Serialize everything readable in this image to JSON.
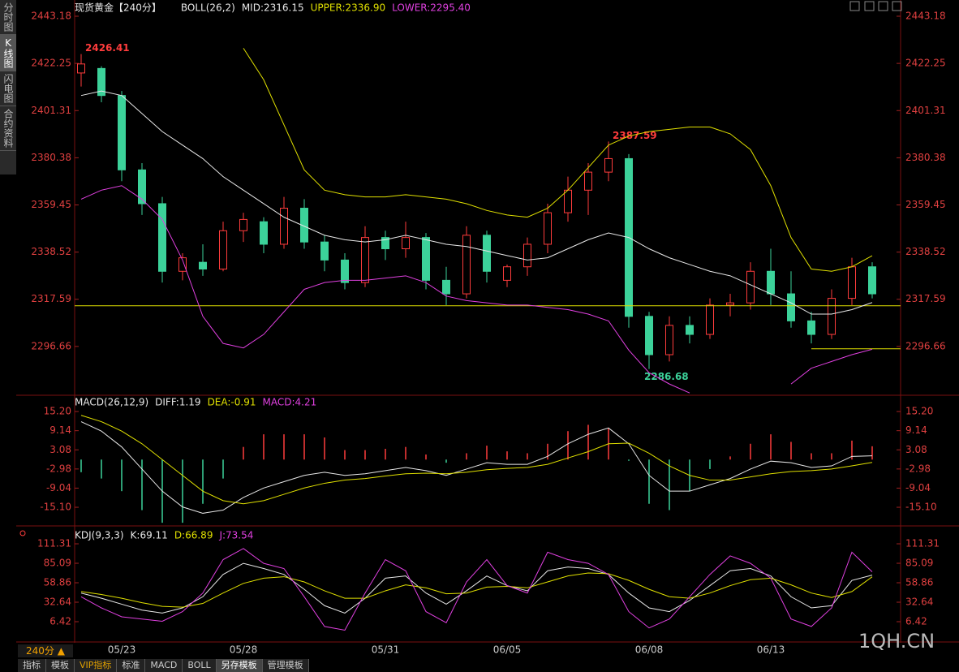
{
  "ui": {
    "sidebar": [
      "分时图",
      "K线图",
      "闪电图",
      "合约资料"
    ],
    "period": "240分 ▲",
    "tabs": [
      "指标",
      "模板",
      "VIP指标",
      "标准",
      "MACD",
      "BOLL",
      "另存模板",
      "管理模板"
    ],
    "watermark": "1QH.CN"
  },
  "chart_data": [
    {
      "type": "candlestick",
      "title": "现货黄金【240分】",
      "header": [
        {
          "text": "BOLL(26,2)",
          "color": "#e8e8e8"
        },
        {
          "text": "MID:2316.15",
          "color": "#e8e8e8"
        },
        {
          "text": "UPPER:2336.90",
          "color": "#e0e000"
        },
        {
          "text": "LOWER:2295.40",
          "color": "#e040e0"
        }
      ],
      "categories": [
        null,
        null,
        "05/23",
        null,
        null,
        null,
        null,
        null,
        "05/28",
        null,
        null,
        null,
        null,
        null,
        null,
        "05/31",
        null,
        null,
        null,
        null,
        null,
        "06/05",
        null,
        null,
        null,
        null,
        null,
        null,
        "06/08",
        null,
        null,
        null,
        null,
        null,
        "06/13",
        null,
        null,
        null,
        null,
        null
      ],
      "open": [
        2418,
        2420,
        2408,
        2375,
        2360,
        2330,
        2334,
        2331,
        2348,
        2352,
        2342,
        2358,
        2343,
        2335,
        2325,
        2345,
        2340,
        2345,
        2326,
        2320,
        2346,
        2326,
        2332,
        2342,
        2356,
        2366,
        2374,
        2380,
        2310,
        2293,
        2306,
        2302,
        2315,
        2316,
        2330,
        2320,
        2308,
        2302,
        2318,
        2332
      ],
      "high": [
        2426.41,
        2421,
        2410,
        2378,
        2363,
        2338,
        2342,
        2352,
        2356,
        2354,
        2363,
        2362,
        2346,
        2338,
        2350,
        2348,
        2352,
        2347,
        2332,
        2350,
        2348,
        2333,
        2345,
        2360,
        2372,
        2378,
        2387.59,
        2382,
        2312,
        2310,
        2310,
        2318,
        2320,
        2334,
        2340,
        2330,
        2312,
        2322,
        2336,
        2334
      ],
      "low": [
        2412,
        2405,
        2370,
        2355,
        2325,
        2326,
        2328,
        2330,
        2343,
        2338,
        2340,
        2340,
        2330,
        2322,
        2323,
        2335,
        2336,
        2322,
        2315,
        2318,
        2325,
        2323,
        2328,
        2338,
        2352,
        2355,
        2370,
        2305,
        2286.68,
        2290,
        2298,
        2300,
        2310,
        2313,
        2315,
        2305,
        2298,
        2300,
        2315,
        2318
      ],
      "close": [
        2422,
        2408,
        2375,
        2360,
        2330,
        2336,
        2331,
        2348,
        2353,
        2342,
        2358,
        2343,
        2335,
        2325,
        2345,
        2340,
        2345,
        2326,
        2320,
        2346,
        2330,
        2332,
        2342,
        2356,
        2366,
        2374,
        2380,
        2310,
        2293,
        2306,
        2302,
        2315,
        2316,
        2330,
        2320,
        2308,
        2302,
        2318,
        2332,
        2320
      ],
      "high_labels": [
        "2426.41",
        null,
        null,
        null,
        null,
        null,
        null,
        null,
        null,
        null,
        null,
        null,
        null,
        null,
        null,
        null,
        null,
        null,
        null,
        null,
        null,
        null,
        null,
        null,
        null,
        null,
        "2387.59",
        null,
        null,
        null,
        null,
        null,
        null,
        null,
        null,
        null,
        null,
        null,
        null,
        null
      ],
      "low_labels": [
        null,
        null,
        null,
        null,
        null,
        null,
        null,
        null,
        null,
        null,
        null,
        null,
        null,
        null,
        null,
        null,
        null,
        null,
        null,
        null,
        null,
        null,
        null,
        null,
        null,
        null,
        null,
        null,
        "2286.68",
        null,
        null,
        null,
        null,
        null,
        null,
        null,
        null,
        null,
        null,
        null
      ],
      "up_color": "#ff3c3c",
      "down_color": "#3cd29a",
      "series": [
        {
          "color": "#e0e000",
          "values": [
            null,
            null,
            null,
            null,
            null,
            null,
            null,
            null,
            2429,
            2415,
            2395,
            2375,
            2366,
            2364,
            2363,
            2363,
            2364,
            2363,
            2362,
            2360,
            2357,
            2355,
            2354,
            2358,
            2366,
            2376,
            2386,
            2390,
            2392,
            2393,
            2394,
            2394,
            2391,
            2384,
            2368,
            2345,
            2331,
            2330,
            2332,
            2336.9
          ]
        },
        {
          "color": "#e8e8e8",
          "values": [
            2408,
            2410,
            2408,
            2400,
            2392,
            2386,
            2380,
            2372,
            2366,
            2360,
            2354,
            2350,
            2346,
            2344,
            2343,
            2344,
            2346,
            2344,
            2342,
            2341,
            2339,
            2337,
            2335,
            2336,
            2340,
            2344,
            2347,
            2345,
            2340,
            2336,
            2333,
            2330,
            2328,
            2324,
            2320,
            2316,
            2311,
            2311,
            2313,
            2316.15
          ]
        },
        {
          "color": "#e040e0",
          "values": [
            2362,
            2366,
            2368,
            2362,
            2353,
            2335,
            2310,
            2298,
            2296,
            2302,
            2312,
            2322,
            2325,
            2326,
            2326,
            2327,
            2328,
            2325,
            2319,
            2317,
            2316,
            2315,
            2315,
            2314,
            2313,
            2311,
            2308,
            2295,
            2285,
            2280,
            2276,
            null,
            null,
            null,
            null,
            2280,
            2287,
            2290,
            2293,
            2295.4
          ]
        }
      ],
      "reference_lines": [
        2314.7,
        2295.6
      ],
      "ref_color": "#e0e000",
      "ylim": [
        2275,
        2447.5
      ],
      "yticks": [
        2443.18,
        2422.25,
        2401.31,
        2380.38,
        2359.45,
        2338.52,
        2317.59,
        2296.66
      ]
    },
    {
      "type": "macd",
      "header": [
        {
          "text": "MACD(26,12,9)",
          "color": "#e8e8e8"
        },
        {
          "text": "DIFF:1.19",
          "color": "#e8e8e8"
        },
        {
          "text": "DEA:-0.91",
          "color": "#e0e000"
        },
        {
          "text": "MACD:4.21",
          "color": "#e040e0"
        }
      ],
      "up_color": "#ff3c3c",
      "down_color": "#3cd29a",
      "bars": [
        -4,
        -6,
        -10,
        -16,
        -20,
        -20,
        -14,
        -6,
        4,
        8,
        8,
        8,
        7,
        3,
        3,
        3.4,
        4,
        1.6,
        -1,
        2,
        4.4,
        2.6,
        2,
        5,
        9,
        11,
        10,
        -0.4,
        -14,
        -16,
        -10,
        -3,
        1,
        5,
        8,
        5.6,
        2,
        2,
        6,
        4.21
      ],
      "series": [
        {
          "color": "#e8e8e8",
          "values": [
            12,
            9,
            4,
            -3,
            -10,
            -15,
            -17,
            -16,
            -12,
            -9,
            -7,
            -5,
            -4,
            -5,
            -4.5,
            -3.5,
            -2.5,
            -3.5,
            -5,
            -3,
            -1,
            -1.5,
            -1.5,
            1,
            5,
            8,
            10,
            5,
            -5,
            -10,
            -10,
            -8,
            -6,
            -3,
            -0.5,
            -1,
            -2.5,
            -2,
            1,
            1.19
          ]
        },
        {
          "color": "#e0e000",
          "values": [
            14,
            12,
            9,
            5,
            0,
            -5,
            -10,
            -13,
            -14,
            -13,
            -11,
            -9,
            -7.5,
            -6.5,
            -6,
            -5.2,
            -4.5,
            -4.3,
            -4.5,
            -4,
            -3.2,
            -2.8,
            -2.5,
            -1.5,
            0.5,
            2.5,
            5,
            5.2,
            2,
            -2,
            -5,
            -6.5,
            -6.5,
            -5.5,
            -4.5,
            -3.8,
            -3.5,
            -3,
            -2,
            -0.91
          ]
        }
      ],
      "ylim": [
        -21,
        20.1
      ],
      "yticks": [
        {
          "value": 15.2,
          "label": "15.20"
        },
        9.14,
        3.08,
        -2.98,
        -9.04,
        {
          "value": -15.1,
          "label": "-15.10"
        }
      ]
    },
    {
      "type": "kdj",
      "header": [
        {
          "text": "KDJ(9,3,3)",
          "color": "#e8e8e8"
        },
        {
          "text": "K:69.11",
          "color": "#e8e8e8"
        },
        {
          "text": "D:66.89",
          "color": "#e0e000"
        },
        {
          "text": "J:73.54",
          "color": "#e040e0"
        }
      ],
      "series": [
        {
          "color": "#e8e8e8",
          "values": [
            45,
            38,
            30,
            22,
            18,
            25,
            40,
            70,
            85,
            78,
            70,
            50,
            28,
            18,
            38,
            65,
            68,
            45,
            30,
            48,
            68,
            55,
            48,
            75,
            80,
            78,
            70,
            45,
            25,
            20,
            35,
            55,
            75,
            78,
            68,
            40,
            25,
            28,
            62,
            69.11
          ]
        },
        {
          "color": "#e0e000",
          "values": [
            47,
            43,
            38,
            32,
            27,
            26,
            31,
            45,
            58,
            65,
            67,
            60,
            48,
            38,
            38,
            48,
            56,
            52,
            44,
            45,
            53,
            54,
            52,
            60,
            68,
            72,
            71,
            62,
            50,
            40,
            38,
            45,
            55,
            63,
            65,
            56,
            45,
            39,
            47,
            66.89
          ]
        },
        {
          "color": "#e040e0",
          "values": [
            40,
            25,
            13,
            10,
            7,
            20,
            45,
            90,
            105,
            85,
            78,
            40,
            0,
            -5,
            45,
            90,
            75,
            20,
            5,
            60,
            90,
            55,
            45,
            100,
            90,
            85,
            70,
            20,
            -2,
            10,
            40,
            70,
            95,
            85,
            65,
            10,
            0,
            25,
            100,
            73.54
          ]
        }
      ],
      "ylim": [
        -19.8,
        133.2
      ],
      "yticks": [
        111.31,
        85.09,
        58.86,
        32.64,
        6.42
      ]
    }
  ]
}
